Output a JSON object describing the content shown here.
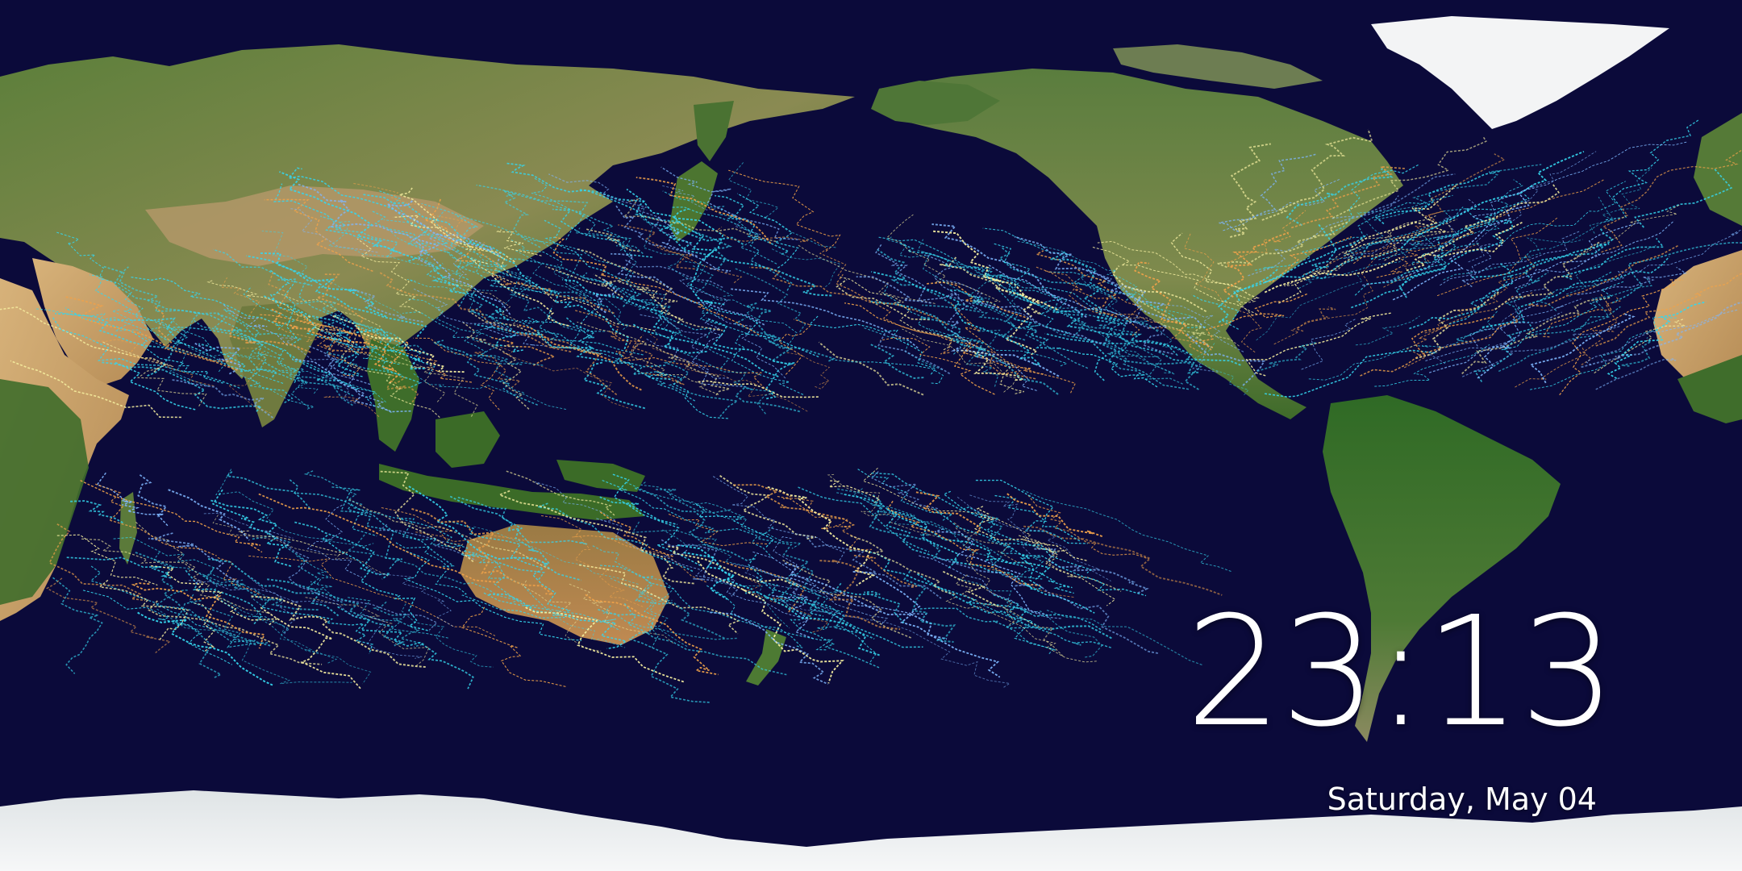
{
  "screen": "lock-screen",
  "clock": {
    "time": "23:13",
    "date": "Saturday, May 04"
  },
  "wallpaper": {
    "subject": "world-map-tropical-cyclone-tracks",
    "colors": {
      "ocean": "#0b0a3a",
      "land_green": "#3e6b2a",
      "land_desert": "#c9a46a",
      "ice": "#eef1f2",
      "track_primary": "#35d6ee",
      "track_secondary": "#7fb8ff",
      "track_intense": "#f0a24a",
      "track_extreme": "#f7f0a0"
    }
  },
  "text_color": "#ffffff"
}
